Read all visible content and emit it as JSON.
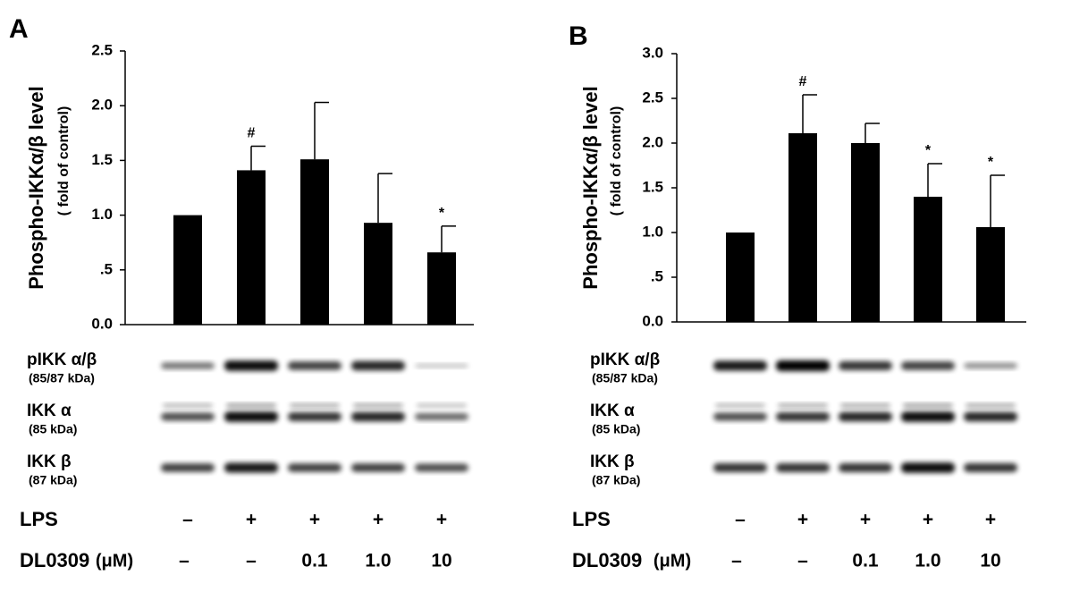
{
  "chart_data": [
    {
      "type": "bar",
      "panel": "A",
      "y_label": "Phospho-IKKα/β level",
      "y_sublabel": "( fold of control)",
      "values": [
        1.0,
        1.41,
        1.51,
        0.93,
        0.66
      ],
      "errors": [
        null,
        0.22,
        0.52,
        0.45,
        0.24
      ],
      "annotations": [
        null,
        "#",
        null,
        null,
        "*"
      ],
      "color": "#000000",
      "ylim": [
        0,
        2.5
      ],
      "yticks": [
        {
          "value": 0,
          "label": "0.0"
        },
        {
          "value": 0.5,
          "label": ".5"
        },
        {
          "value": 1,
          "label": "1.0"
        },
        1.5,
        {
          "value": 2,
          "label": "2.0"
        },
        2.5
      ],
      "blots": [
        {
          "name": "pIKK α/β",
          "size": "(85/87 kDa)"
        },
        {
          "name": "IKK α",
          "size": "(85 kDa)"
        },
        {
          "name": "IKK β",
          "size": "(87 kDa)"
        }
      ],
      "conditions": [
        {
          "label": "LPS",
          "values": [
            "–",
            "+",
            "+",
            "+",
            "+"
          ]
        },
        {
          "label": "DL0309",
          "unit": "(μM)",
          "values": [
            "–",
            "–",
            "0.1",
            "1.0",
            "10"
          ]
        }
      ]
    },
    {
      "type": "bar",
      "panel": "B",
      "y_label": "Phospho-IKKα/β level",
      "y_sublabel": "( fold of control)",
      "values": [
        1.0,
        2.11,
        2.0,
        1.4,
        1.06
      ],
      "errors": [
        null,
        0.43,
        0.22,
        0.37,
        0.58
      ],
      "annotations": [
        null,
        "#",
        null,
        "*",
        "*"
      ],
      "color": "#000000",
      "ylim": [
        0,
        3
      ],
      "yticks": [
        {
          "value": 0,
          "label": "0.0"
        },
        {
          "value": 0.5,
          "label": ".5"
        },
        {
          "value": 1,
          "label": "1.0"
        },
        1.5,
        {
          "value": 2,
          "label": "2.0"
        },
        2.5,
        {
          "value": 3,
          "label": "3.0"
        }
      ],
      "blots": [
        {
          "name": "pIKK α/β",
          "size": "(85/87 kDa)"
        },
        {
          "name": "IKK α",
          "size": "(85 kDa)"
        },
        {
          "name": "IKK β",
          "size": "(87 kDa)"
        }
      ],
      "conditions": [
        {
          "label": "LPS",
          "values": [
            "–",
            "+",
            "+",
            "+",
            "+"
          ]
        },
        {
          "label": "DL0309",
          "unit": "(μM)",
          "values": [
            "–",
            "–",
            "0.1",
            "1.0",
            "10"
          ]
        }
      ]
    }
  ]
}
